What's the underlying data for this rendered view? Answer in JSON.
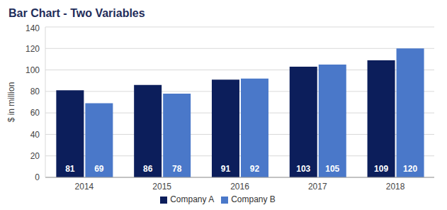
{
  "chart_data": {
    "type": "bar",
    "title": "Bar Chart - Two Variables",
    "y_label": "$ in million",
    "categories": [
      "2014",
      "2015",
      "2016",
      "2017",
      "2018"
    ],
    "series": [
      {
        "name": "Company A",
        "color": "#0c1e5b",
        "values": [
          81,
          86,
          91,
          103,
          109
        ]
      },
      {
        "name": "Company B",
        "color": "#4a78c9",
        "values": [
          69,
          78,
          92,
          105,
          120
        ]
      }
    ],
    "ylim": [
      0,
      140
    ],
    "yticks": [
      0,
      20,
      40,
      60,
      80,
      100,
      120,
      140
    ],
    "grid": true,
    "legend": "bottom",
    "data_labels": true
  }
}
